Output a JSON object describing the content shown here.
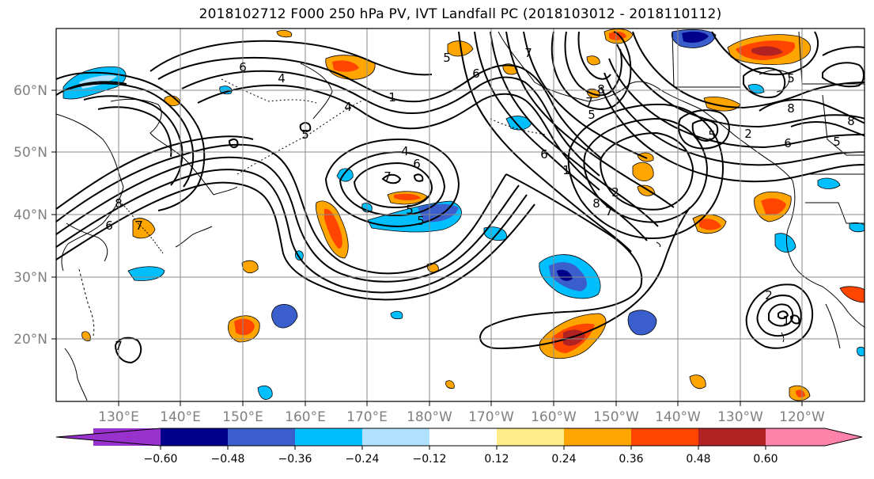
{
  "title": "2018102712 F000 250 hPa PV, IVT Landfall PC (2018103012 - 2018110112)",
  "lat_ticks": [
    "60°N",
    "50°N",
    "40°N",
    "30°N",
    "20°N"
  ],
  "lon_ticks": [
    "130°E",
    "140°E",
    "150°E",
    "160°E",
    "170°E",
    "180°W",
    "170°W",
    "160°W",
    "150°W",
    "140°W",
    "130°W",
    "120°W"
  ],
  "colorbar": {
    "ticks": [
      "−0.60",
      "−0.48",
      "−0.36",
      "−0.24",
      "−0.12",
      "0.12",
      "0.24",
      "0.36",
      "0.48",
      "0.60"
    ],
    "colors": [
      "#9932cc",
      "#00008b",
      "#3a5fcd",
      "#00bfff",
      "#b0e2ff",
      "#ffffff",
      "#ffec8b",
      "#ffa500",
      "#ff4500",
      "#b22222",
      "#ff82ab"
    ]
  },
  "contour_labels": [
    "6",
    "4",
    "5",
    "4",
    "1",
    "5",
    "6",
    "7",
    "4",
    "6",
    "7",
    "5",
    "5",
    "8",
    "6",
    "7",
    "8",
    "7",
    "5",
    "1",
    "2",
    "6",
    "8",
    "7",
    "8",
    "6",
    "5",
    "2",
    "8",
    "5",
    "5",
    "1",
    "2",
    "7"
  ]
}
